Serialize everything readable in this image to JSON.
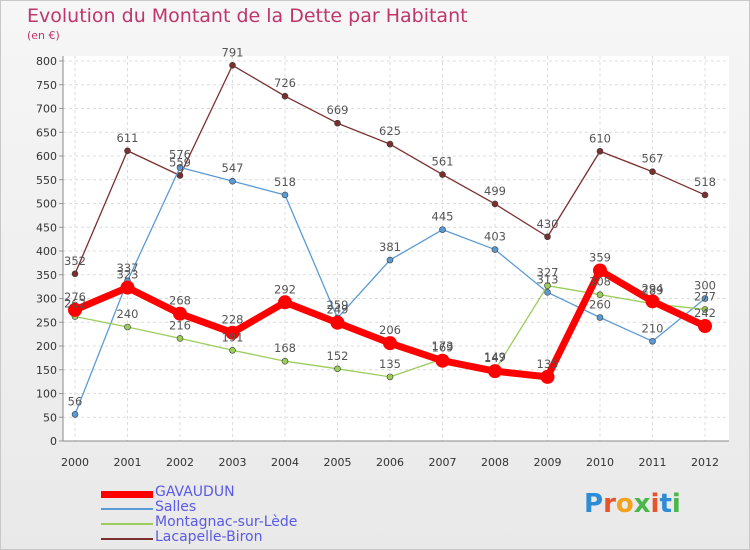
{
  "header": {
    "title": "Evolution du Montant de la Dette par Habitant",
    "subtitle": "(en €)"
  },
  "logo": {
    "letters": [
      "P",
      "r",
      "o",
      "x",
      "i",
      "t",
      "i"
    ],
    "colors": [
      "#2e8bd6",
      "#e8542a",
      "#f2a31b",
      "#49b749",
      "#e8542a",
      "#2e8bd6",
      "#49b749"
    ]
  },
  "chart_data": {
    "type": "line",
    "title": "Evolution du Montant de la Dette par Habitant",
    "subtitle": "(en €)",
    "x": [
      "2000",
      "2001",
      "2002",
      "2003",
      "2004",
      "2005",
      "2006",
      "2007",
      "2008",
      "2009",
      "2010",
      "2011",
      "2012"
    ],
    "yticks": [
      "0",
      "50",
      "100",
      "150",
      "200",
      "250",
      "300",
      "350",
      "400",
      "450",
      "500",
      "550",
      "600",
      "650",
      "700",
      "750",
      "800"
    ],
    "ylim": [
      0,
      800
    ],
    "grid": true,
    "legend_position": "bottom-left",
    "series": [
      {
        "name": "GAVAUDUN",
        "color": "#ff0000",
        "values": [
          276,
          323,
          268,
          228,
          292,
          249,
          206,
          169,
          147,
          135,
          359,
          294,
          242
        ],
        "labels": [
          "276",
          "323",
          "268",
          "228",
          "292",
          "249",
          "206",
          "169",
          "147",
          "135",
          "359",
          "294",
          "242"
        ]
      },
      {
        "name": "Salles",
        "color": "#5b9bd5",
        "values": [
          56,
          337,
          576,
          547,
          518,
          259,
          381,
          445,
          403,
          313,
          260,
          210,
          300
        ],
        "labels": [
          "56",
          "337",
          "576",
          "547",
          "518",
          "259",
          "381",
          "445",
          "403",
          "313",
          "260",
          "210",
          "300"
        ]
      },
      {
        "name": "Montagnac-sur-Lède",
        "color": "#9acd5a",
        "values": [
          262,
          240,
          216,
          191,
          168,
          152,
          135,
          173,
          149,
          327,
          308,
          289,
          277
        ],
        "labels": [
          "262",
          "240",
          "216",
          "191",
          "168",
          "152",
          "135",
          "173",
          "149",
          "327",
          "308",
          "289",
          "277"
        ]
      },
      {
        "name": "Lacapelle-Biron",
        "color": "#7b2f2f",
        "values": [
          352,
          611,
          559,
          791,
          726,
          669,
          625,
          561,
          499,
          430,
          610,
          567,
          518
        ],
        "labels": [
          "352",
          "611",
          "559",
          "791",
          "726",
          "669",
          "625",
          "561",
          "499",
          "430",
          "610",
          "567",
          "518"
        ]
      }
    ]
  }
}
